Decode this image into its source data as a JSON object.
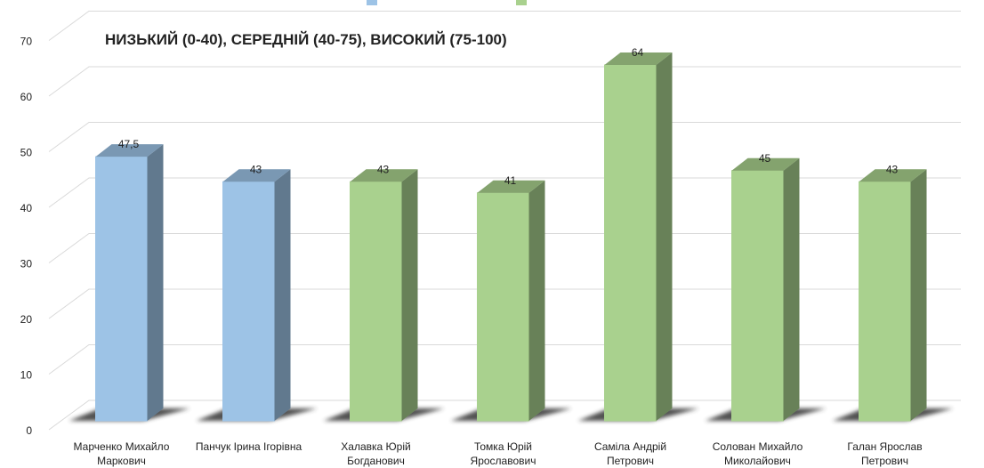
{
  "chart_data": {
    "type": "bar3d",
    "title": "НИЗЬКИЙ (0-40), СЕРЕДНІЙ (40-75), ВИСОКИЙ (75-100)",
    "categories": [
      [
        "Марченко Михайло",
        "Маркович"
      ],
      [
        "Панчук Ірина Ігорівна"
      ],
      [
        "Халавка Юрій",
        "Богданович"
      ],
      [
        "Томка Юрій",
        "Ярославович"
      ],
      [
        "Саміла Андрій",
        "Петрович"
      ],
      [
        "Солован Михайло",
        "Миколайович"
      ],
      [
        "Галан Ярослав",
        "Петрович"
      ]
    ],
    "values": [
      47.5,
      43,
      43,
      41,
      64,
      45,
      43
    ],
    "value_labels": [
      "47,5",
      "43",
      "43",
      "41",
      "64",
      "45",
      "43"
    ],
    "colors": [
      "#9dc3e6",
      "#9dc3e6",
      "#a9d18e",
      "#a9d18e",
      "#a9d18e",
      "#a9d18e",
      "#a9d18e"
    ],
    "ylim": [
      0,
      70
    ],
    "yticks": [
      0,
      10,
      20,
      30,
      40,
      50,
      60,
      70
    ],
    "grid": true
  }
}
